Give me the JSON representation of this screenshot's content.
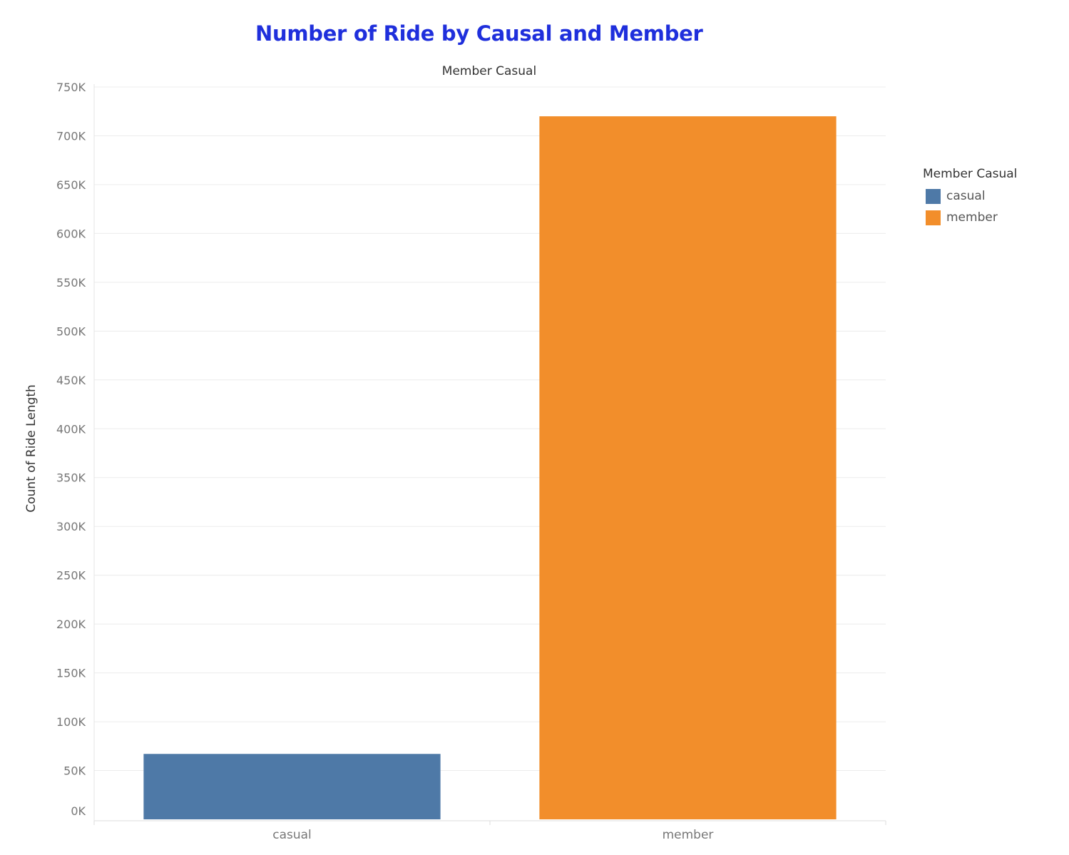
{
  "chart_data": {
    "type": "bar",
    "title": "Number of Ride by Causal and Member",
    "header": "Member Casual",
    "xlabel": "",
    "ylabel": "Count of Ride Length",
    "categories": [
      "casual",
      "member"
    ],
    "values": [
      67000,
      720000
    ],
    "colors": [
      "#4e79a7",
      "#f28e2b"
    ],
    "ylim": [
      0,
      750000
    ],
    "yticks": [
      {
        "value": 0,
        "label": "0K"
      },
      {
        "value": 50000,
        "label": "50K"
      },
      {
        "value": 100000,
        "label": "100K"
      },
      {
        "value": 150000,
        "label": "150K"
      },
      {
        "value": 200000,
        "label": "200K"
      },
      {
        "value": 250000,
        "label": "250K"
      },
      {
        "value": 300000,
        "label": "300K"
      },
      {
        "value": 350000,
        "label": "350K"
      },
      {
        "value": 400000,
        "label": "400K"
      },
      {
        "value": 450000,
        "label": "450K"
      },
      {
        "value": 500000,
        "label": "500K"
      },
      {
        "value": 550000,
        "label": "550K"
      },
      {
        "value": 600000,
        "label": "600K"
      },
      {
        "value": 650000,
        "label": "650K"
      },
      {
        "value": 700000,
        "label": "700K"
      },
      {
        "value": 750000,
        "label": "750K"
      }
    ],
    "grid": true,
    "legend": {
      "title": "Member Casual",
      "position": "right",
      "items": [
        {
          "label": "casual",
          "color": "#4e79a7"
        },
        {
          "label": "member",
          "color": "#f28e2b"
        }
      ]
    }
  }
}
